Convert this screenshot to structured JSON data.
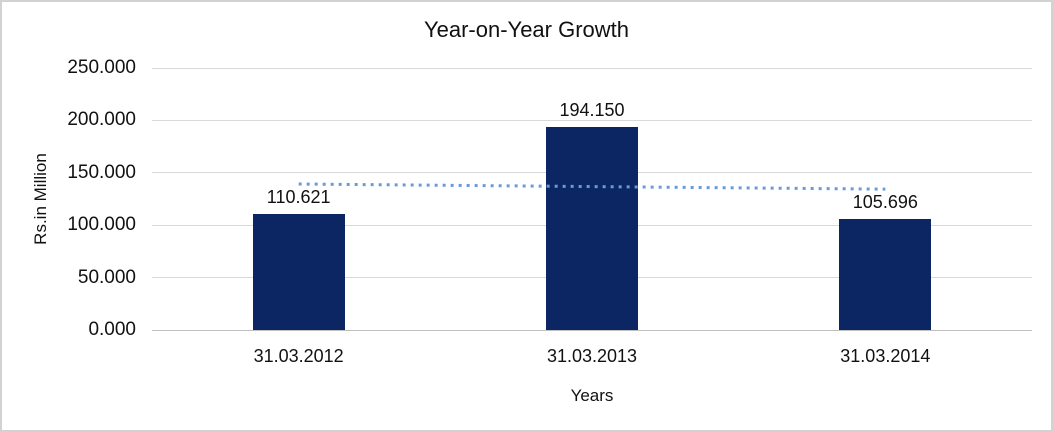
{
  "chart_data": {
    "type": "bar",
    "title": "Year-on-Year Growth",
    "xlabel": "Years",
    "ylabel": "Rs.in Million",
    "categories": [
      "31.03.2012",
      "31.03.2013",
      "31.03.2014"
    ],
    "values": [
      110.621,
      194.15,
      105.696
    ],
    "value_labels": [
      "110.621",
      "194.150",
      "105.696"
    ],
    "y_ticks": [
      "250.000",
      "200.000",
      "150.000",
      "100.000",
      "50.000",
      "0.000"
    ],
    "ylim": [
      0,
      250
    ],
    "grid": "horizontal",
    "legend": "none",
    "bar_color": "#0c2663",
    "trendline": {
      "style": "dotted",
      "color": "#6a9bd4",
      "start_value": 139.3,
      "end_value": 134.4
    }
  }
}
